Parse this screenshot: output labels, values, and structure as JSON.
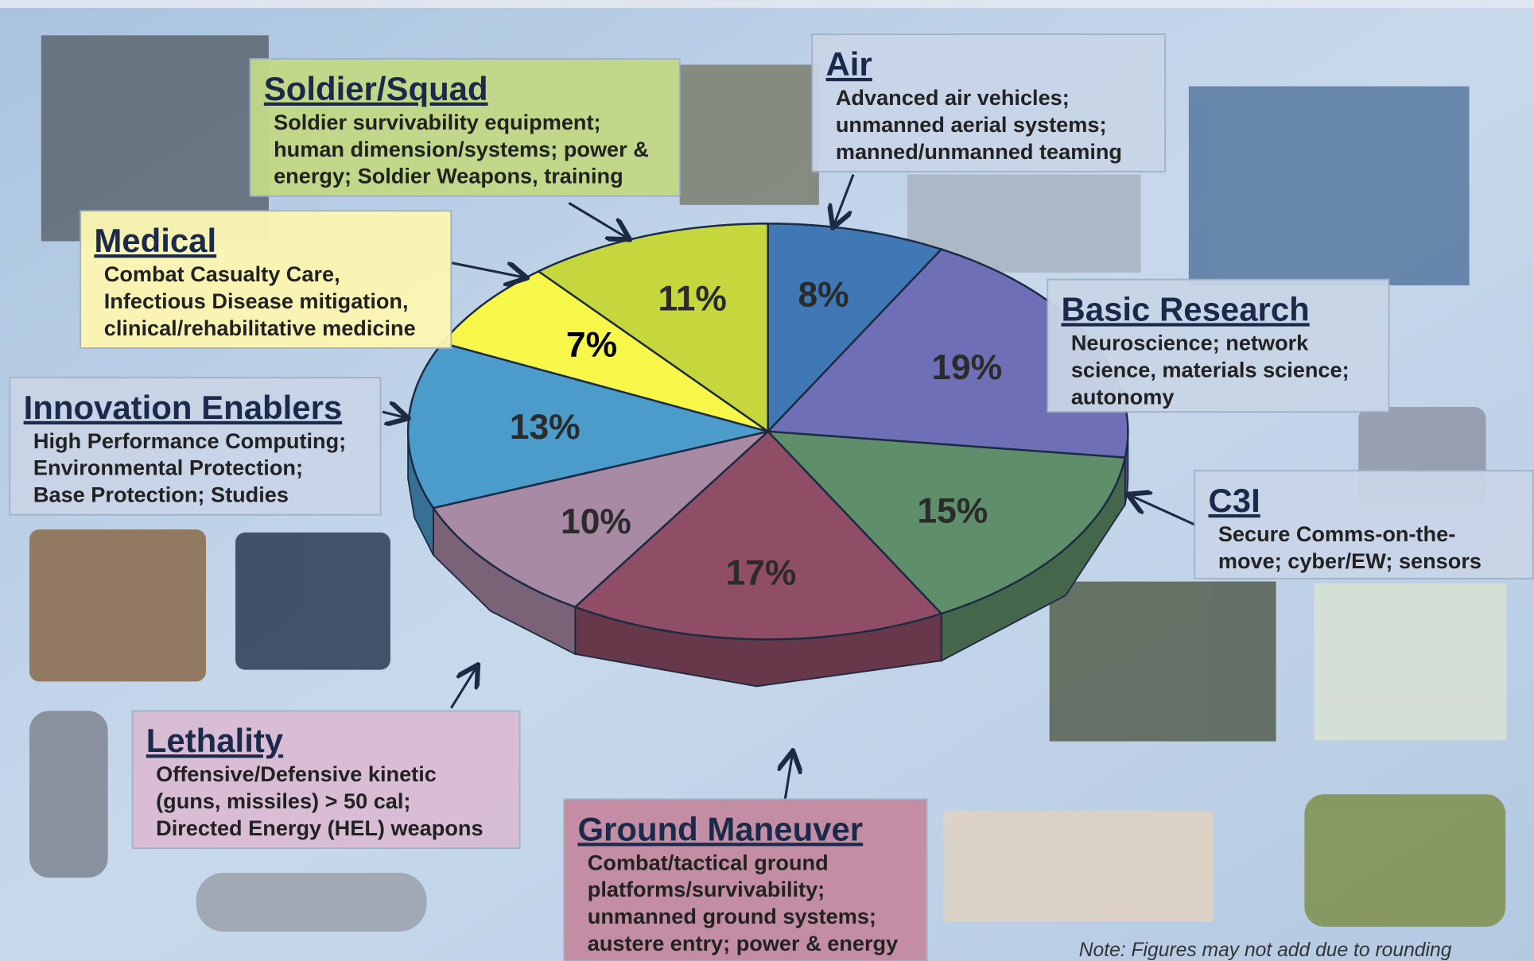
{
  "chart_data": {
    "type": "pie",
    "categories": [
      "Air",
      "Basic Research",
      "C3I",
      "Ground Maneuver",
      "Lethality",
      "Innovation Enablers",
      "Medical",
      "Soldier/Squad"
    ],
    "values": [
      8,
      19,
      15,
      17,
      10,
      13,
      7,
      11
    ],
    "value_labels": [
      "8%",
      "19%",
      "15%",
      "17%",
      "10%",
      "13%",
      "7%",
      "11%"
    ],
    "colors": [
      "#3f78b5",
      "#6f6fb8",
      "#5e8f6a",
      "#8f4e66",
      "#a98aa4",
      "#4b9ccb",
      "#f7f74a",
      "#c6d73e"
    ],
    "descriptions": [
      [
        "Advanced air vehicles;",
        "unmanned aerial systems;",
        "manned/unmanned teaming"
      ],
      [
        "Neuroscience; network",
        "science, materials science;",
        "autonomy"
      ],
      [
        "Secure Comms-on-the-",
        "move; cyber/EW; sensors"
      ],
      [
        "Combat/tactical ground",
        "platforms/survivability;",
        "unmanned ground systems;",
        "austere entry; power & energy"
      ],
      [
        "Offensive/Defensive kinetic",
        "(guns, missiles) > 50 cal;",
        "Directed Energy (HEL) weapons"
      ],
      [
        "High Performance Computing;",
        "Environmental Protection;",
        "Base Protection; Studies"
      ],
      [
        "Combat Casualty Care,",
        "Infectious Disease mitigation,",
        "clinical/rehabilitative medicine"
      ],
      [
        "Soldier survivability equipment;",
        "human dimension/systems; power &",
        "energy; Soldier Weapons, training"
      ]
    ],
    "note": "Note:  Figures may not add due to rounding"
  }
}
